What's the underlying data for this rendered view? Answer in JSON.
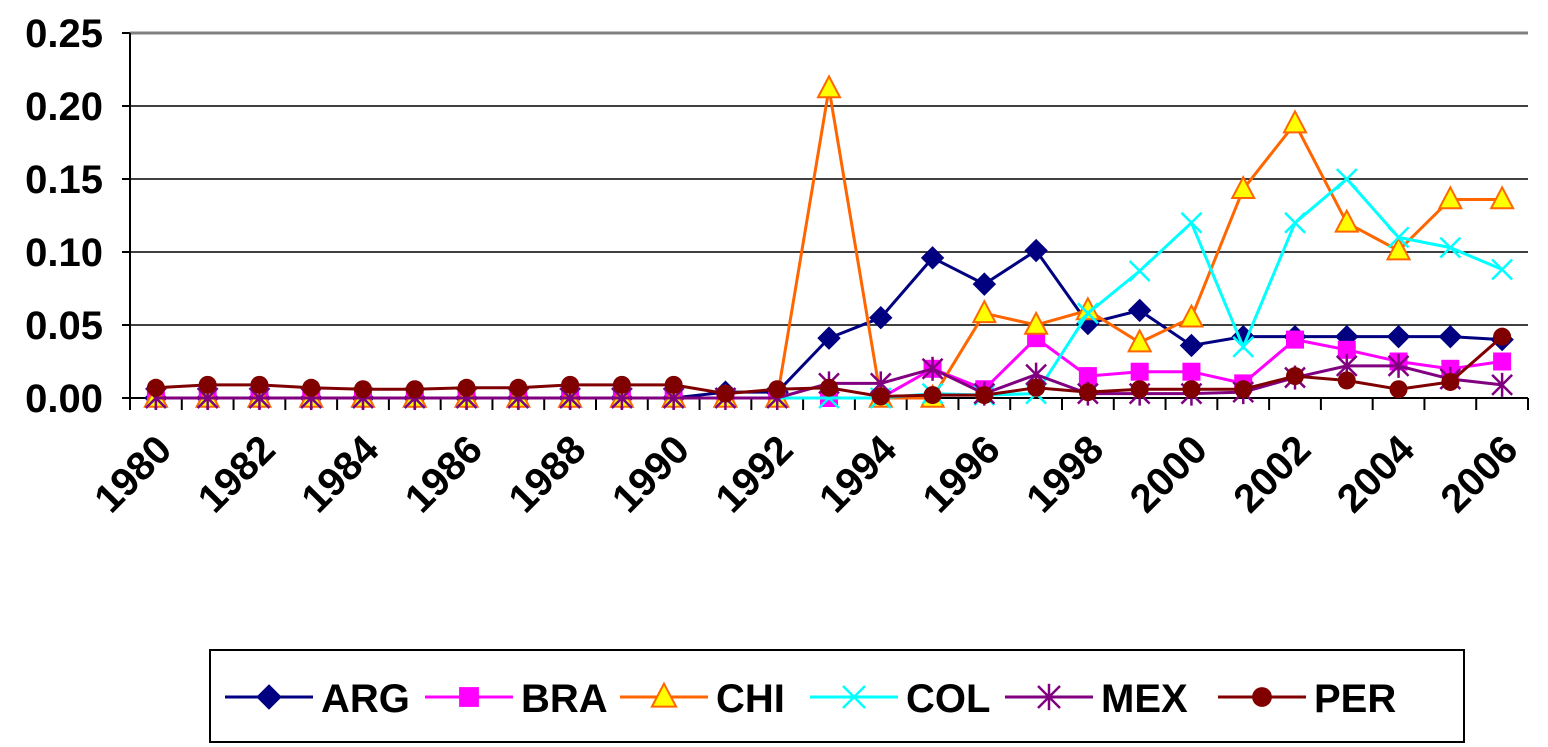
{
  "chart_data": {
    "type": "line",
    "title": "",
    "xlabel": "",
    "ylabel": "",
    "x": [
      1980,
      1981,
      1982,
      1983,
      1984,
      1985,
      1986,
      1987,
      1988,
      1989,
      1990,
      1991,
      1992,
      1993,
      1994,
      1995,
      1996,
      1997,
      1998,
      1999,
      2000,
      2001,
      2002,
      2003,
      2004,
      2005,
      2006
    ],
    "x_tick_labels": [
      "1980",
      "1982",
      "1984",
      "1986",
      "1988",
      "1990",
      "1992",
      "1994",
      "1996",
      "1998",
      "2000",
      "2002",
      "2004",
      "2006"
    ],
    "y_tick_labels": [
      "0.00",
      "0.05",
      "0.10",
      "0.15",
      "0.20",
      "0.25"
    ],
    "ylim": [
      0,
      0.25
    ],
    "grid": "horizontal",
    "legend_position": "bottom",
    "series": [
      {
        "name": "ARG",
        "color": "#000080",
        "marker": "diamond",
        "values": [
          0,
          0,
          0,
          0,
          0,
          0,
          0,
          0,
          0,
          0,
          0,
          0.004,
          0.004,
          0.041,
          0.055,
          0.096,
          0.078,
          0.101,
          0.051,
          0.06,
          0.036,
          0.042,
          0.042,
          0.042,
          0.042,
          0.042,
          0.04
        ]
      },
      {
        "name": "BRA",
        "color": "#FF00FF",
        "marker": "square",
        "values": [
          0,
          0,
          0,
          0,
          0,
          0,
          0,
          0,
          0,
          0,
          0,
          0,
          0,
          0,
          0,
          0.02,
          0.006,
          0.041,
          0.015,
          0.018,
          0.018,
          0.01,
          0.04,
          0.033,
          0.025,
          0.02,
          0.025
        ]
      },
      {
        "name": "CHI",
        "color": "#FF6600",
        "marker": "triangle",
        "values": [
          0,
          0,
          0,
          0,
          0,
          0,
          0,
          0,
          0,
          0,
          0,
          0,
          0,
          0.212,
          0,
          0,
          0.058,
          0.05,
          0.06,
          0.038,
          0.055,
          0.143,
          0.188,
          0.12,
          0.101,
          0.136,
          0.136
        ]
      },
      {
        "name": "COL",
        "color": "#00FFFF",
        "marker": "x",
        "values": [
          0,
          0,
          0,
          0,
          0,
          0,
          0,
          0,
          0,
          0,
          0,
          0,
          0,
          0,
          0,
          0.003,
          0.002,
          0.003,
          0.058,
          0.087,
          0.12,
          0.035,
          0.12,
          0.15,
          0.11,
          0.103,
          0.088
        ]
      },
      {
        "name": "MEX",
        "color": "#800080",
        "marker": "asterisk",
        "values": [
          0,
          0,
          0,
          0,
          0,
          0,
          0,
          0,
          0,
          0,
          0,
          0,
          0,
          0.01,
          0.01,
          0.02,
          0.003,
          0.016,
          0.003,
          0.003,
          0.003,
          0.004,
          0.014,
          0.022,
          0.022,
          0.013,
          0.009
        ]
      },
      {
        "name": "PER",
        "color": "#800000",
        "marker": "circle",
        "values": [
          0.007,
          0.009,
          0.009,
          0.007,
          0.006,
          0.006,
          0.007,
          0.007,
          0.009,
          0.009,
          0.009,
          0.003,
          0.006,
          0.007,
          0.001,
          0.002,
          0.002,
          0.007,
          0.004,
          0.006,
          0.006,
          0.006,
          0.015,
          0.012,
          0.006,
          0.011,
          0.042
        ]
      }
    ]
  }
}
